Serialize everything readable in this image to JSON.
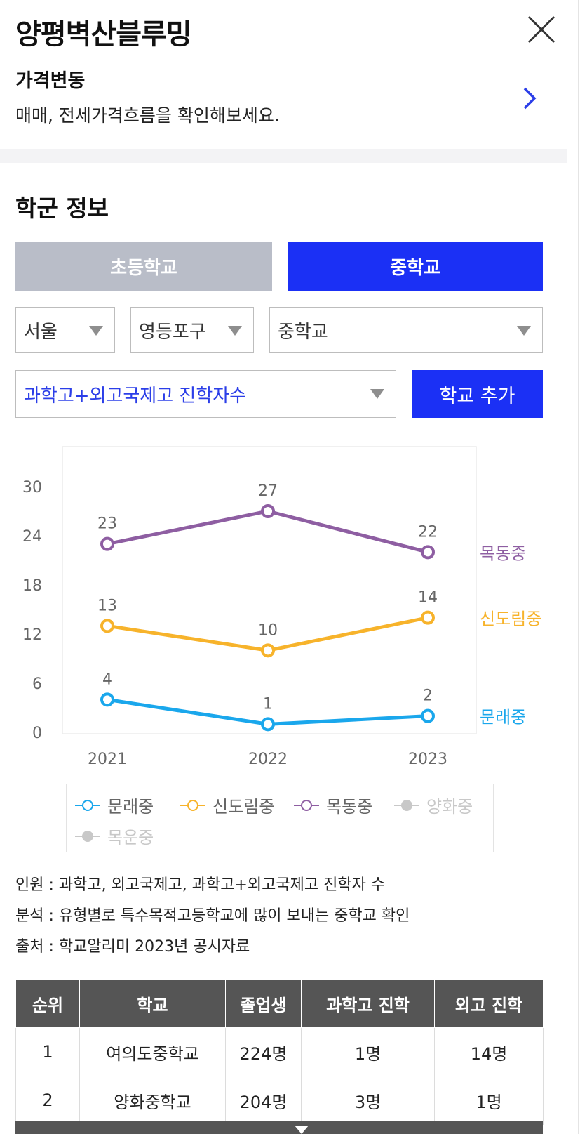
{
  "header": {
    "title": "양평벽산블루밍"
  },
  "price": {
    "title": "가격변동",
    "desc": "매매, 전세가격흐름을 확인해보세요."
  },
  "section": {
    "title": "학군 정보",
    "tabs": [
      {
        "label": "초등학교"
      },
      {
        "label": "중학교"
      }
    ]
  },
  "filters": {
    "region": "서울",
    "district": "영등포구",
    "type": "중학교",
    "metric": "과학고+외고국제고 진학자수",
    "add_button": "학교 추가"
  },
  "colors": {
    "accent": "#1b30f5",
    "series": [
      "#1aa7ec",
      "#f7b32b",
      "#8e5ea2"
    ],
    "disabled": "#c8c8c8"
  },
  "chart_data": {
    "type": "line",
    "x": [
      "2021",
      "2022",
      "2023"
    ],
    "yticks": [
      "0",
      "6",
      "12",
      "18",
      "24",
      "30"
    ],
    "ylim": [
      0,
      30
    ],
    "series": [
      {
        "name": "문래중",
        "values": [
          4,
          1,
          2
        ]
      },
      {
        "name": "신도림중",
        "values": [
          13,
          10,
          14
        ]
      },
      {
        "name": "목동중",
        "values": [
          23,
          27,
          22
        ]
      }
    ],
    "legend": [
      {
        "name": "문래중",
        "active": true
      },
      {
        "name": "신도림중",
        "active": true
      },
      {
        "name": "목동중",
        "active": true
      },
      {
        "name": "양화중",
        "active": false
      },
      {
        "name": "목운중",
        "active": false
      }
    ]
  },
  "notes": [
    "인원 : 과학고, 외고국제고, 과학고+외고국제고 진학자 수",
    "분석 : 유형별로 특수목적고등학교에 많이 보내는 중학교 확인",
    "출처 : 학교알리미 2023년 공시자료"
  ],
  "table": {
    "headers": [
      "순위",
      "학교",
      "졸업생",
      "과학고 진학",
      "외고 진학"
    ],
    "rows": [
      [
        "1",
        "여의도중학교",
        "224명",
        "1명",
        "14명"
      ],
      [
        "2",
        "양화중학교",
        "204명",
        "3명",
        "1명"
      ]
    ]
  }
}
